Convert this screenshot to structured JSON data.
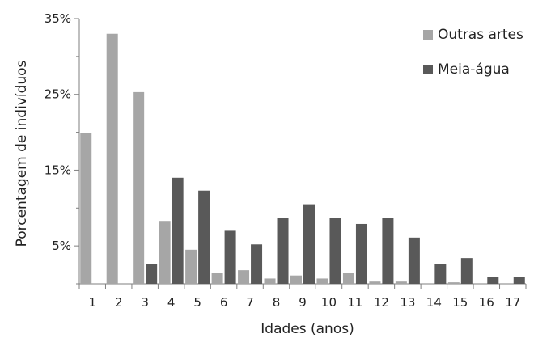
{
  "chart_data": {
    "type": "bar",
    "title": "",
    "xlabel": "Idades (anos)",
    "ylabel": "Porcentagem de indivíduos",
    "categories": [
      "1",
      "2",
      "3",
      "4",
      "5",
      "6",
      "7",
      "8",
      "9",
      "10",
      "11",
      "12",
      "13",
      "14",
      "15",
      "16",
      "17"
    ],
    "ylim": [
      0,
      35
    ],
    "y_tick_labels": [
      "5%",
      "15%",
      "25%",
      "35%"
    ],
    "grid": false,
    "legend_position": "top-right",
    "series": [
      {
        "name": "Outras artes",
        "color": "#a6a6a6",
        "values": [
          19.9,
          33.0,
          25.3,
          8.3,
          4.5,
          1.4,
          1.8,
          0.7,
          1.1,
          0.7,
          1.4,
          0.3,
          0.3,
          0.0,
          0.2,
          0.0,
          0.0
        ]
      },
      {
        "name": "Meia-água",
        "color": "#595959",
        "values": [
          0.0,
          0.0,
          2.6,
          14.0,
          12.3,
          7.0,
          5.2,
          8.7,
          10.5,
          8.7,
          7.9,
          8.7,
          6.1,
          2.6,
          3.4,
          0.9,
          0.9
        ]
      }
    ]
  }
}
